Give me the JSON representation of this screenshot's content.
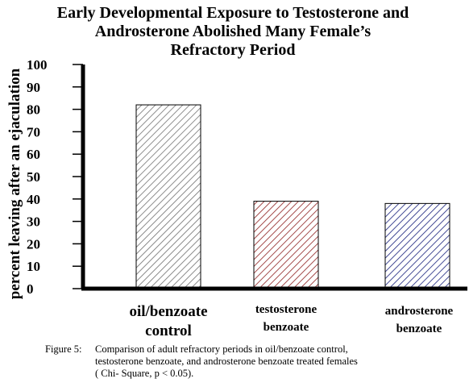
{
  "chart_data": {
    "type": "bar",
    "title_lines": [
      "Early Developmental Exposure to Testosterone and",
      "Androsterone Abolished Many Female’s",
      "Refractory Period"
    ],
    "ylabel": "percent leaving after an ejaculation",
    "xlabel": "",
    "ylim": [
      0,
      100
    ],
    "yticks": [
      0,
      10,
      20,
      30,
      40,
      50,
      60,
      70,
      80,
      90,
      100
    ],
    "categories": [
      [
        "oil/benzoate",
        "control"
      ],
      [
        "testosterone",
        "benzoate"
      ],
      [
        "androsterone",
        "benzoate"
      ]
    ],
    "values": [
      82,
      39,
      38
    ],
    "bar_colors": [
      "#707070",
      "#8b1a1a",
      "#1a237e"
    ],
    "grid": false,
    "legend": "none"
  },
  "caption": {
    "label": "Figure 5:",
    "lines": [
      "Comparison of adult refractory periods in oil/benzoate control,",
      "testosterone benzoate, and androsterone benzoate treated females",
      "( Chi- Square, p < 0.05)."
    ]
  }
}
